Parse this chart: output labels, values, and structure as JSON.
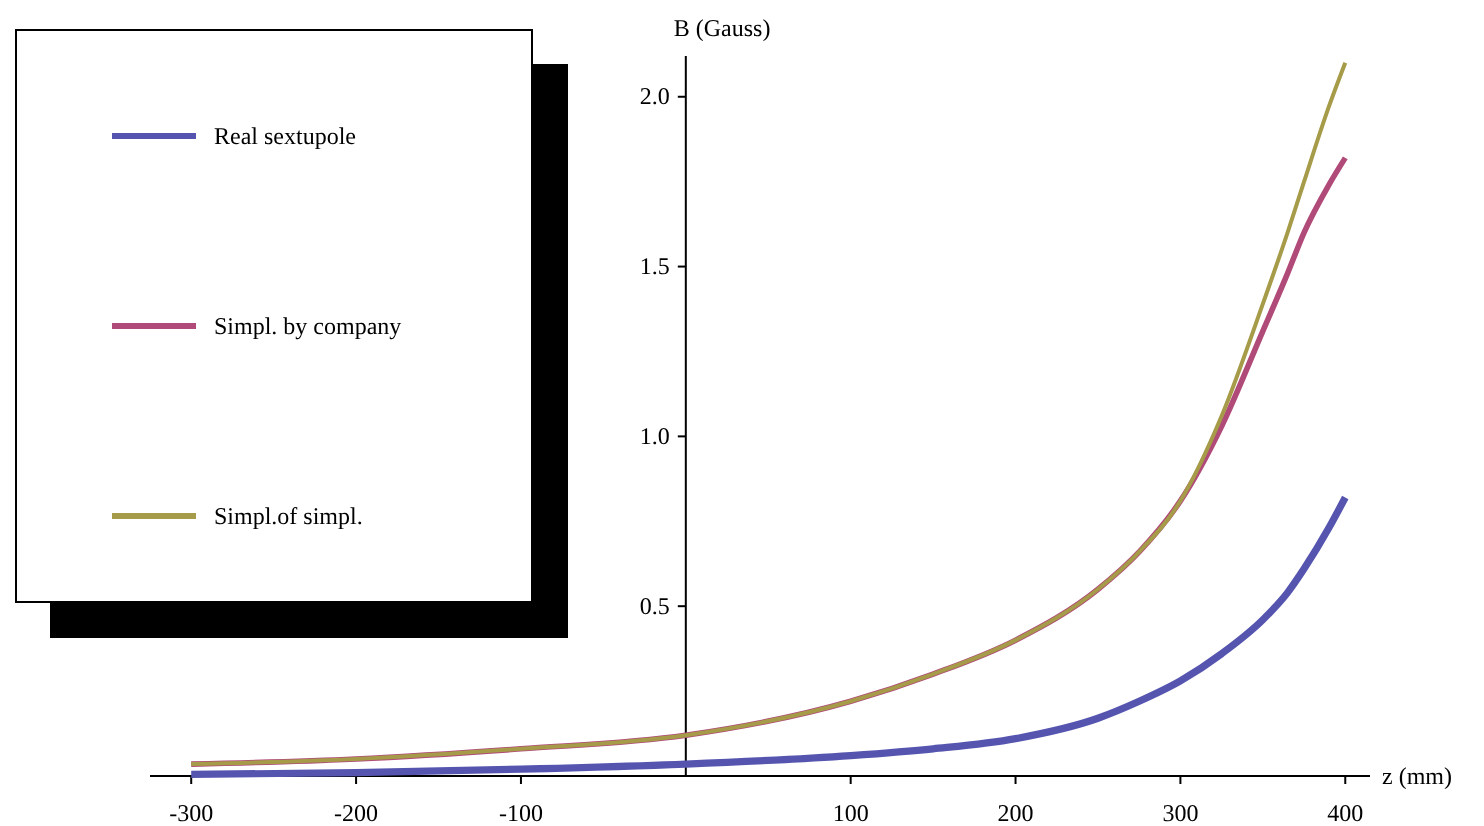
{
  "chart_data": {
    "type": "line",
    "xlabel": "z (mm)",
    "ylabel": "B (Gauss)",
    "x": [
      -300,
      -200,
      -100,
      0,
      100,
      150,
      200,
      250,
      275,
      300,
      325,
      350,
      365,
      375,
      390,
      400
    ],
    "xlim": [
      -325,
      415
    ],
    "ylim": [
      0,
      2.12
    ],
    "xticks": [
      -300,
      -200,
      -100,
      100,
      200,
      300,
      400
    ],
    "yticks": [
      {
        "value": 0.5,
        "label": "0.5"
      },
      {
        "value": 1,
        "label": "1.0"
      },
      {
        "value": 1.5,
        "label": "1.5"
      },
      {
        "value": 2,
        "label": "2.0"
      }
    ],
    "legend": "top left",
    "grid": false,
    "marker": "none",
    "line_style": "solid",
    "series": [
      {
        "name": "Real sextupole",
        "color": "#5555b0",
        "values": [
          0.005,
          0.01,
          0.02,
          0.035,
          0.06,
          0.08,
          0.11,
          0.17,
          0.22,
          0.28,
          0.36,
          0.46,
          0.54,
          0.61,
          0.73,
          0.82
        ]
      },
      {
        "name": "Simpl. by company",
        "color": "#b04a78",
        "values": [
          0.035,
          0.05,
          0.08,
          0.12,
          0.22,
          0.3,
          0.4,
          0.55,
          0.66,
          0.81,
          1.03,
          1.31,
          1.48,
          1.6,
          1.74,
          1.82
        ]
      },
      {
        "name": "Simpl.of simpl.",
        "color": "#a69b48",
        "values": [
          0.035,
          0.05,
          0.08,
          0.12,
          0.22,
          0.3,
          0.4,
          0.55,
          0.66,
          0.81,
          1.06,
          1.39,
          1.6,
          1.75,
          1.97,
          2.1
        ]
      }
    ]
  }
}
